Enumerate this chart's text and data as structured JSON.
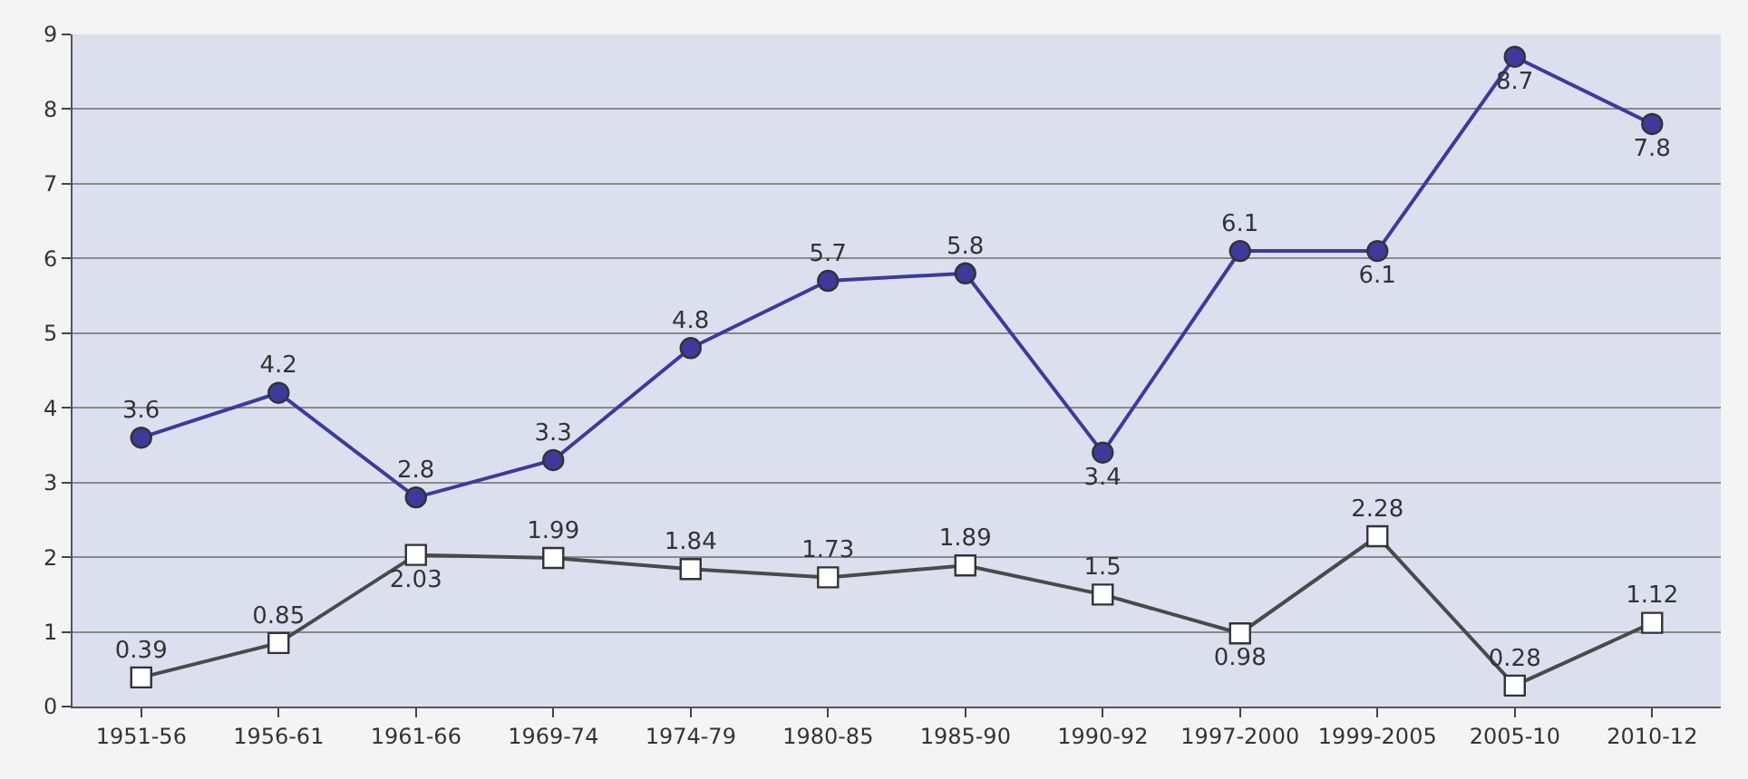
{
  "chart_data": {
    "type": "line",
    "categories": [
      "1951-56",
      "1956-61",
      "1961-66",
      "1969-74",
      "1974-79",
      "1980-85",
      "1985-90",
      "1990-92",
      "1997-2000",
      "1999-2005",
      "2005-10",
      "2010-12"
    ],
    "series": [
      {
        "color": "#3d3a9c",
        "marker": "circle",
        "values": [
          3.6,
          4.2,
          2.8,
          3.3,
          4.8,
          5.7,
          5.8,
          3.4,
          6.1,
          6.1,
          8.7,
          7.8
        ]
      },
      {
        "color": "#4a4a4a",
        "marker": "square",
        "values": [
          0.39,
          0.85,
          2.03,
          1.99,
          1.84,
          1.73,
          1.89,
          1.5,
          0.98,
          2.28,
          0.28,
          1.12
        ]
      }
    ],
    "ylim": [
      0,
      9
    ],
    "yticks": [
      0,
      1,
      2,
      3,
      4,
      5,
      6,
      7,
      8,
      9
    ],
    "grid": "y",
    "data_labels": true
  }
}
